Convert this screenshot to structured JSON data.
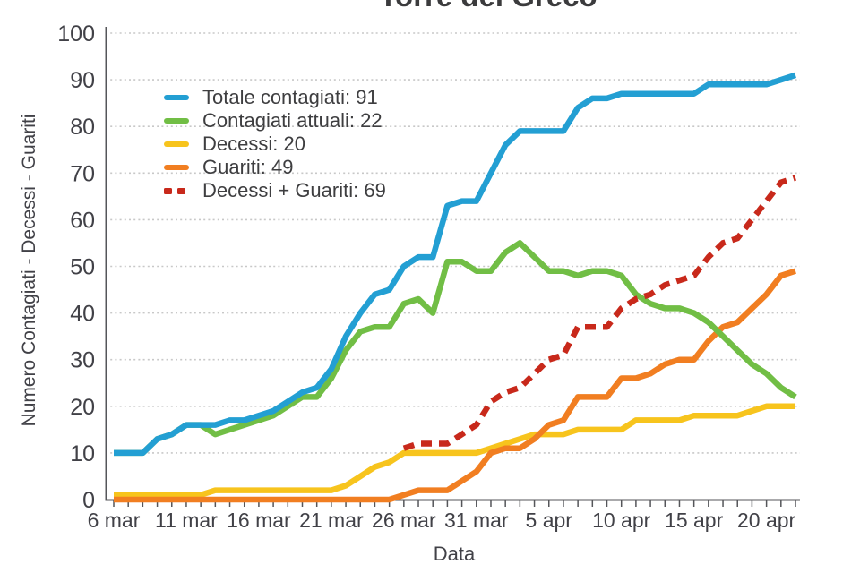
{
  "title": "Torre del Greco",
  "chart_data": {
    "type": "line",
    "title": "Torre del Greco",
    "xlabel": "Data",
    "ylabel": "Numero Contagiati - Decessi - Guariti",
    "ylim": [
      0,
      100
    ],
    "y_ticks": [
      0,
      10,
      20,
      30,
      40,
      50,
      60,
      70,
      80,
      90,
      100
    ],
    "grid": "horizontal-dotted",
    "legend_position": "upper-left-inside",
    "n_points": 48,
    "x_dates": [
      "6 mar",
      "7 mar",
      "8 mar",
      "9 mar",
      "10 mar",
      "11 mar",
      "12 mar",
      "13 mar",
      "14 mar",
      "15 mar",
      "16 mar",
      "17 mar",
      "18 mar",
      "19 mar",
      "20 mar",
      "21 mar",
      "22 mar",
      "23 mar",
      "24 mar",
      "25 mar",
      "26 mar",
      "27 mar",
      "28 mar",
      "29 mar",
      "30 mar",
      "31 mar",
      "1 apr",
      "2 apr",
      "3 apr",
      "4 apr",
      "5 apr",
      "6 apr",
      "7 apr",
      "8 apr",
      "9 apr",
      "10 apr",
      "11 apr",
      "12 apr",
      "13 apr",
      "14 apr",
      "15 apr",
      "16 apr",
      "17 apr",
      "18 apr",
      "19 apr",
      "20 apr",
      "21 apr",
      "22 apr"
    ],
    "x_tick_indices": [
      0,
      5,
      10,
      15,
      20,
      25,
      30,
      35,
      40,
      45
    ],
    "x_tick_labels": [
      "6 mar",
      "11 mar",
      "16 mar",
      "21 mar",
      "26 mar",
      "31 mar",
      "5 apr",
      "10 apr",
      "15 apr",
      "20 apr"
    ],
    "draw_order": [
      2,
      3,
      1,
      0,
      4
    ],
    "series": [
      {
        "name": "Totale contagiati",
        "legend_label": "Totale contagiati: 91",
        "final_value": 91,
        "color": "#239fd3",
        "style": "solid",
        "values": [
          10,
          10,
          10,
          13,
          14,
          16,
          16,
          16,
          17,
          17,
          18,
          19,
          21,
          23,
          24,
          28,
          35,
          40,
          44,
          45,
          50,
          52,
          52,
          63,
          64,
          64,
          70,
          76,
          79,
          79,
          79,
          79,
          84,
          86,
          86,
          87,
          87,
          87,
          87,
          87,
          87,
          89,
          89,
          89,
          89,
          89,
          90,
          91
        ]
      },
      {
        "name": "Contagiati attuali",
        "legend_label": "Contagiati attuali: 22",
        "final_value": 22,
        "color": "#71be45",
        "style": "solid",
        "values": [
          10,
          10,
          10,
          13,
          14,
          16,
          16,
          14,
          15,
          16,
          17,
          18,
          20,
          22,
          22,
          26,
          32,
          36,
          37,
          37,
          42,
          43,
          40,
          51,
          51,
          49,
          49,
          53,
          55,
          52,
          49,
          49,
          48,
          49,
          49,
          48,
          44,
          42,
          41,
          41,
          40,
          38,
          35,
          32,
          29,
          27,
          24,
          22
        ]
      },
      {
        "name": "Decessi",
        "legend_label": "Decessi: 20",
        "final_value": 20,
        "color": "#f7c41d",
        "style": "solid",
        "values": [
          1,
          1,
          1,
          1,
          1,
          1,
          1,
          2,
          2,
          2,
          2,
          2,
          2,
          2,
          2,
          2,
          3,
          5,
          7,
          8,
          10,
          10,
          10,
          10,
          10,
          10,
          11,
          12,
          13,
          14,
          14,
          14,
          15,
          15,
          15,
          15,
          17,
          17,
          17,
          17,
          18,
          18,
          18,
          18,
          19,
          20,
          20,
          20
        ]
      },
      {
        "name": "Guariti",
        "legend_label": "Guariti: 49",
        "final_value": 49,
        "color": "#f17e21",
        "style": "solid",
        "values": [
          0,
          0,
          0,
          0,
          0,
          0,
          0,
          0,
          0,
          0,
          0,
          0,
          0,
          0,
          0,
          0,
          0,
          0,
          0,
          0,
          1,
          2,
          2,
          2,
          4,
          6,
          10,
          11,
          11,
          13,
          16,
          17,
          22,
          22,
          22,
          26,
          26,
          27,
          29,
          30,
          30,
          34,
          37,
          38,
          41,
          44,
          48,
          49
        ]
      },
      {
        "name": "Decessi + Guariti",
        "legend_label": "Decessi + Guariti: 69",
        "final_value": 69,
        "color": "#c8291b",
        "style": "dashed",
        "values": [
          null,
          null,
          null,
          null,
          null,
          null,
          null,
          null,
          null,
          null,
          null,
          null,
          null,
          null,
          null,
          null,
          null,
          null,
          null,
          null,
          11,
          12,
          12,
          12,
          14,
          16,
          21,
          23,
          24,
          27,
          30,
          31,
          37,
          37,
          37,
          41,
          43,
          44,
          46,
          47,
          48,
          52,
          55,
          56,
          60,
          64,
          68,
          69
        ]
      }
    ],
    "colors": {
      "axis": "#55565a",
      "grid": "#c8c8c8",
      "text": "#414147"
    }
  }
}
